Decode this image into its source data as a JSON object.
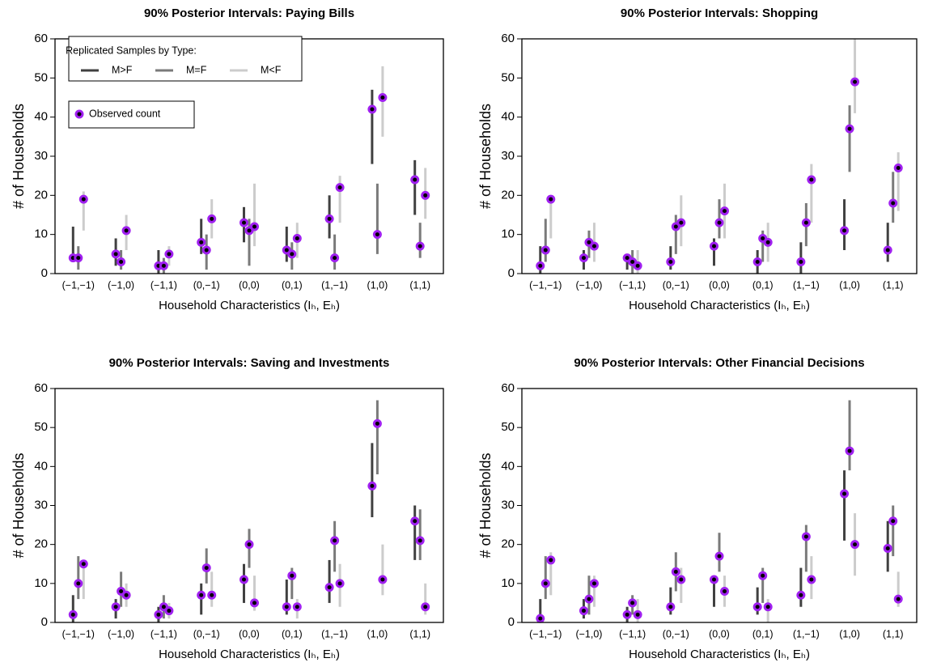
{
  "charts": [
    {
      "type": "interval",
      "title": "90% Posterior Intervals: Paying Bills",
      "x_label": "Household Characteristics (Iₕ, Eₕ)",
      "y_label": "# of Households",
      "categories": [
        "(−1,−1)",
        "(−1,0)",
        "(−1,1)",
        "(0,−1)",
        "(0,0)",
        "(0,1)",
        "(1,−1)",
        "(1,0)",
        "(1,1)"
      ],
      "ylim": [
        0,
        60
      ],
      "yticks": [
        0,
        10,
        20,
        30,
        40,
        50,
        60
      ],
      "legend_title": "Replicated Samples by Type:",
      "observed_label": "Observed count",
      "observed_color": "#a020f0",
      "series": [
        {
          "name": "M>F",
          "color": "#404040",
          "low": [
            4,
            2,
            0,
            5,
            8,
            3,
            9,
            28,
            15
          ],
          "high": [
            12,
            9,
            6,
            14,
            17,
            12,
            20,
            47,
            29
          ],
          "observed": [
            4,
            5,
            2,
            8,
            13,
            6,
            14,
            42,
            24
          ]
        },
        {
          "name": "M=F",
          "color": "#7a7a7a",
          "low": [
            1,
            1,
            0,
            1,
            2,
            1,
            1,
            5,
            4
          ],
          "high": [
            7,
            6,
            4,
            10,
            14,
            8,
            10,
            23,
            13
          ],
          "observed": [
            4,
            3,
            2,
            6,
            11,
            5,
            4,
            10,
            7
          ]
        },
        {
          "name": "M<F",
          "color": "#cccccc",
          "low": [
            11,
            6,
            2,
            9,
            7,
            4,
            13,
            35,
            14
          ],
          "high": [
            21,
            15,
            7,
            19,
            23,
            13,
            25,
            53,
            27
          ],
          "observed": [
            19,
            11,
            5,
            14,
            12,
            9,
            22,
            45,
            20
          ]
        }
      ]
    },
    {
      "type": "interval",
      "title": "90% Posterior Intervals: Shopping",
      "x_label": "Household Characteristics (Iₕ, Eₕ)",
      "y_label": "# of Households",
      "categories": [
        "(−1,−1)",
        "(−1,0)",
        "(−1,1)",
        "(0,−1)",
        "(0,0)",
        "(0,1)",
        "(1,−1)",
        "(1,0)",
        "(1,1)"
      ],
      "ylim": [
        0,
        60
      ],
      "yticks": [
        0,
        10,
        20,
        30,
        40,
        50,
        60
      ],
      "observed_color": "#a020f0",
      "series": [
        {
          "color": "#404040",
          "low": [
            0,
            1,
            1,
            1,
            2,
            0,
            0,
            6,
            3
          ],
          "high": [
            7,
            6,
            5,
            7,
            9,
            6,
            8,
            19,
            13
          ],
          "observed": [
            2,
            4,
            4,
            3,
            7,
            3,
            3,
            11,
            6
          ]
        },
        {
          "color": "#7a7a7a",
          "low": [
            3,
            4,
            0,
            5,
            9,
            3,
            7,
            26,
            13
          ],
          "high": [
            14,
            11,
            6,
            15,
            19,
            11,
            18,
            43,
            26
          ],
          "observed": [
            6,
            8,
            3,
            12,
            13,
            9,
            13,
            37,
            18
          ]
        },
        {
          "color": "#cccccc",
          "low": [
            9,
            3,
            0,
            7,
            9,
            3,
            13,
            41,
            16
          ],
          "high": [
            19,
            13,
            6,
            20,
            23,
            13,
            28,
            60,
            31
          ],
          "observed": [
            19,
            7,
            2,
            13,
            16,
            8,
            24,
            49,
            27
          ]
        }
      ]
    },
    {
      "type": "interval",
      "title": "90% Posterior Intervals: Saving and Investments",
      "x_label": "Household Characteristics (Iₕ, Eₕ)",
      "y_label": "# of Households",
      "categories": [
        "(−1,−1)",
        "(−1,0)",
        "(−1,1)",
        "(0,−1)",
        "(0,0)",
        "(0,1)",
        "(1,−1)",
        "(1,0)",
        "(1,1)"
      ],
      "ylim": [
        0,
        60
      ],
      "yticks": [
        0,
        10,
        20,
        30,
        40,
        50,
        60
      ],
      "observed_color": "#a020f0",
      "series": [
        {
          "color": "#404040",
          "low": [
            0,
            1,
            0,
            2,
            5,
            2,
            5,
            27,
            16
          ],
          "high": [
            7,
            6,
            4,
            10,
            15,
            11,
            16,
            46,
            30
          ],
          "observed": [
            2,
            4,
            2,
            7,
            11,
            4,
            9,
            35,
            26
          ]
        },
        {
          "color": "#7a7a7a",
          "low": [
            6,
            4,
            1,
            10,
            14,
            6,
            13,
            38,
            16
          ],
          "high": [
            17,
            13,
            7,
            19,
            24,
            14,
            26,
            57,
            29
          ],
          "observed": [
            10,
            8,
            4,
            14,
            20,
            12,
            21,
            51,
            21
          ]
        },
        {
          "color": "#cccccc",
          "low": [
            6,
            4,
            1,
            4,
            3,
            1,
            4,
            7,
            2
          ],
          "high": [
            16,
            10,
            5,
            13,
            12,
            6,
            15,
            20,
            10
          ],
          "observed": [
            15,
            7,
            3,
            7,
            5,
            4,
            10,
            11,
            4
          ]
        }
      ]
    },
    {
      "type": "interval",
      "title": "90% Posterior Intervals: Other Financial Decisions",
      "x_label": "Household Characteristics (Iₕ, Eₕ)",
      "y_label": "# of Households",
      "categories": [
        "(−1,−1)",
        "(−1,0)",
        "(−1,1)",
        "(0,−1)",
        "(0,0)",
        "(0,1)",
        "(1,−1)",
        "(1,0)",
        "(1,1)"
      ],
      "ylim": [
        0,
        60
      ],
      "yticks": [
        0,
        10,
        20,
        30,
        40,
        50,
        60
      ],
      "observed_color": "#a020f0",
      "series": [
        {
          "color": "#404040",
          "low": [
            0,
            1,
            0,
            2,
            4,
            2,
            4,
            21,
            13
          ],
          "high": [
            6,
            6,
            4,
            9,
            12,
            9,
            14,
            39,
            26
          ],
          "observed": [
            1,
            3,
            2,
            4,
            11,
            4,
            7,
            33,
            19
          ]
        },
        {
          "color": "#7a7a7a",
          "low": [
            6,
            2,
            2,
            8,
            13,
            5,
            13,
            39,
            17
          ],
          "high": [
            17,
            12,
            7,
            18,
            23,
            14,
            25,
            57,
            30
          ],
          "observed": [
            10,
            6,
            5,
            13,
            17,
            12,
            22,
            44,
            26
          ]
        },
        {
          "color": "#cccccc",
          "low": [
            7,
            4,
            0,
            5,
            4,
            0,
            6,
            12,
            4
          ],
          "high": [
            18,
            12,
            6,
            14,
            12,
            6,
            17,
            28,
            13
          ],
          "observed": [
            16,
            10,
            2,
            11,
            8,
            4,
            11,
            20,
            6
          ]
        }
      ]
    }
  ]
}
